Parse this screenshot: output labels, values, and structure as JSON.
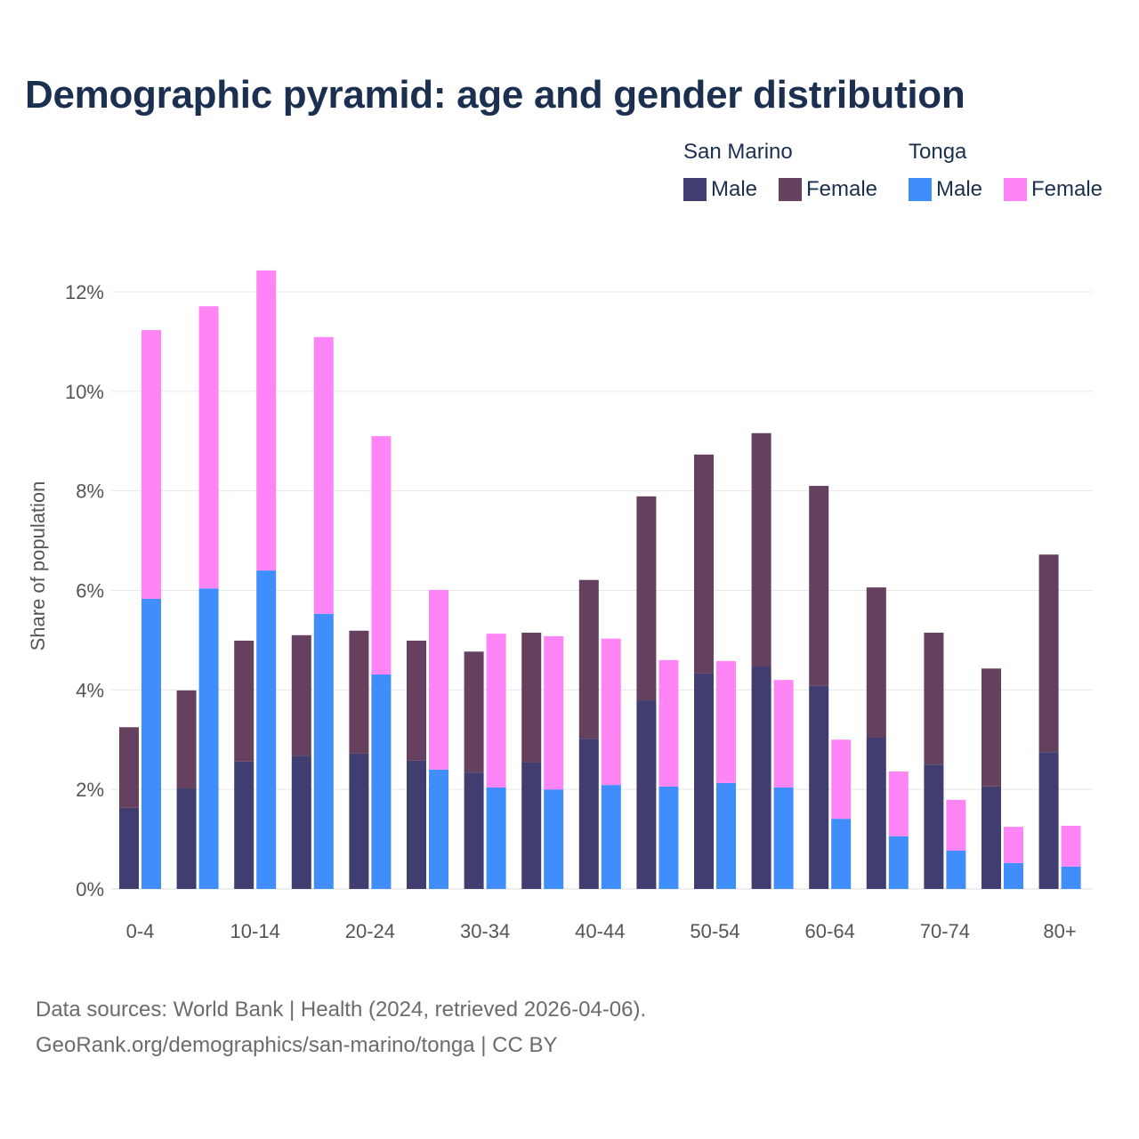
{
  "title": "Demographic pyramid: age and gender distribution",
  "legend": {
    "groups": [
      {
        "name": "San Marino",
        "items": [
          {
            "label": "Male",
            "color": "#403d70"
          },
          {
            "label": "Female",
            "color": "#66405f"
          }
        ]
      },
      {
        "name": "Tonga",
        "items": [
          {
            "label": "Male",
            "color": "#3f8efc"
          },
          {
            "label": "Female",
            "color": "#ff85f7"
          }
        ]
      }
    ]
  },
  "footer": {
    "line1": "Data sources: World Bank | Health (2024, retrieved 2026-04-06).",
    "line2": "GeoRank.org/demographics/san-marino/tonga | CC BY"
  },
  "chart_data": {
    "type": "bar",
    "stacked": true,
    "title": "Demographic pyramid: age and gender distribution",
    "ylabel": "Share of population",
    "xlabel": "",
    "ylim": [
      0,
      12.5
    ],
    "yticks": [
      0,
      2,
      4,
      6,
      8,
      10,
      12
    ],
    "ytick_labels": [
      "0%",
      "2%",
      "4%",
      "6%",
      "8%",
      "10%",
      "12%"
    ],
    "categories": [
      "0-4",
      "5-9",
      "10-14",
      "15-19",
      "20-24",
      "25-29",
      "30-34",
      "35-39",
      "40-44",
      "45-49",
      "50-54",
      "55-59",
      "60-64",
      "65-69",
      "70-74",
      "75-79",
      "80+"
    ],
    "xtick_labels_shown": [
      "0-4",
      "10-14",
      "20-24",
      "30-34",
      "40-44",
      "50-54",
      "60-64",
      "70-74",
      "80+"
    ],
    "grid": true,
    "legend_position": "top-right",
    "countries": [
      {
        "name": "San Marino",
        "series": [
          {
            "name": "Male",
            "color": "#403d70",
            "values": [
              1.63,
              2.02,
              2.56,
              2.68,
              2.72,
              2.58,
              2.34,
              2.54,
              3.02,
              3.79,
              4.33,
              4.47,
              4.08,
              3.04,
              2.5,
              2.06,
              2.75
            ]
          },
          {
            "name": "Female",
            "color": "#66405f",
            "values": [
              1.62,
              1.97,
              2.43,
              2.42,
              2.47,
              2.41,
              2.43,
              2.61,
              3.19,
              4.1,
              4.4,
              4.69,
              4.02,
              3.02,
              2.65,
              2.37,
              3.97
            ]
          }
        ]
      },
      {
        "name": "Tonga",
        "series": [
          {
            "name": "Male",
            "color": "#3f8efc",
            "values": [
              5.83,
              6.04,
              6.4,
              5.53,
              4.31,
              2.4,
              2.04,
              2.0,
              2.09,
              2.06,
              2.13,
              2.04,
              1.41,
              1.06,
              0.77,
              0.52,
              0.45
            ]
          },
          {
            "name": "Female",
            "color": "#ff85f7",
            "values": [
              5.4,
              5.67,
              6.03,
              5.56,
              4.79,
              3.61,
              3.09,
              3.08,
              2.94,
              2.54,
              2.45,
              2.16,
              1.59,
              1.3,
              1.02,
              0.73,
              0.82
            ]
          }
        ]
      }
    ]
  }
}
